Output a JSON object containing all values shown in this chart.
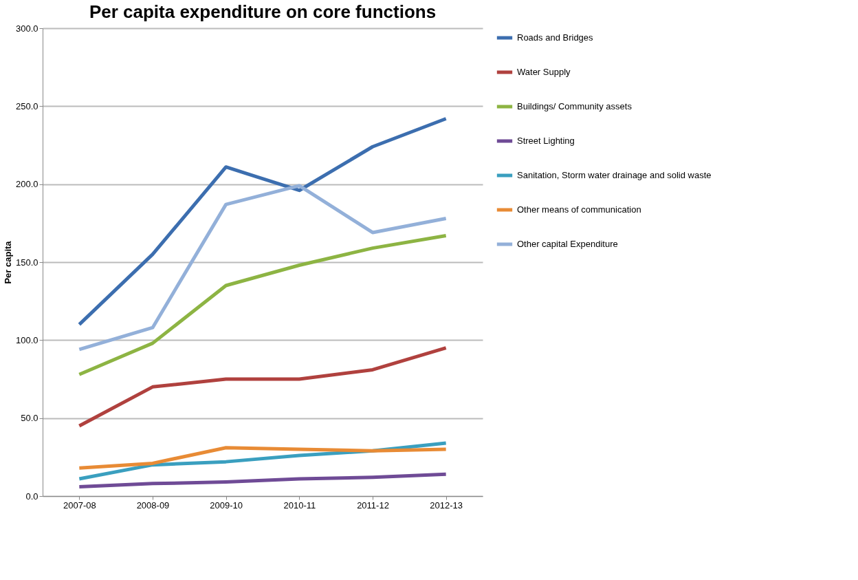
{
  "chart_data": {
    "type": "line",
    "title": "Per capita expenditure on core functions",
    "ylabel": "Per capita",
    "categories": [
      "2007-08",
      "2008-09",
      "2009-10",
      "2010-11",
      "2011-12",
      "2012-13"
    ],
    "series": [
      {
        "name": "Roads and Bridges",
        "color": "#3c6eaf",
        "values": [
          110,
          155,
          211,
          196,
          224,
          242
        ]
      },
      {
        "name": "Water Supply",
        "color": "#b0413e",
        "values": [
          45,
          70,
          75,
          75,
          81,
          95
        ]
      },
      {
        "name": "Buildings/ Community assets",
        "color": "#8db443",
        "values": [
          78,
          98,
          135,
          148,
          159,
          167
        ]
      },
      {
        "name": "Street Lighting",
        "color": "#6f4b96",
        "values": [
          6,
          8,
          9,
          11,
          12,
          14
        ]
      },
      {
        "name": "Sanitation, Storm water drainage and solid waste",
        "color": "#3a9fbf",
        "values": [
          11,
          20,
          22,
          26,
          29,
          34
        ]
      },
      {
        "name": "Other means of communication",
        "color": "#e88b35",
        "values": [
          18,
          21,
          31,
          30,
          29,
          30
        ]
      },
      {
        "name": "Other capital Expenditure",
        "color": "#93b0d9",
        "values": [
          94,
          108,
          187,
          199,
          169,
          178
        ]
      }
    ],
    "ylim": [
      0,
      300
    ],
    "yticks": [
      {
        "value": 0,
        "label": "0.0"
      },
      {
        "value": 50,
        "label": "50.0"
      },
      {
        "value": 100,
        "label": "100.0"
      },
      {
        "value": 150,
        "label": "150.0"
      },
      {
        "value": 200,
        "label": "200.0"
      },
      {
        "value": 250,
        "label": "250.0"
      },
      {
        "value": 300,
        "label": "300.0"
      }
    ],
    "grid": "y",
    "legend": "right",
    "marker": "none",
    "line_style": "solid"
  }
}
